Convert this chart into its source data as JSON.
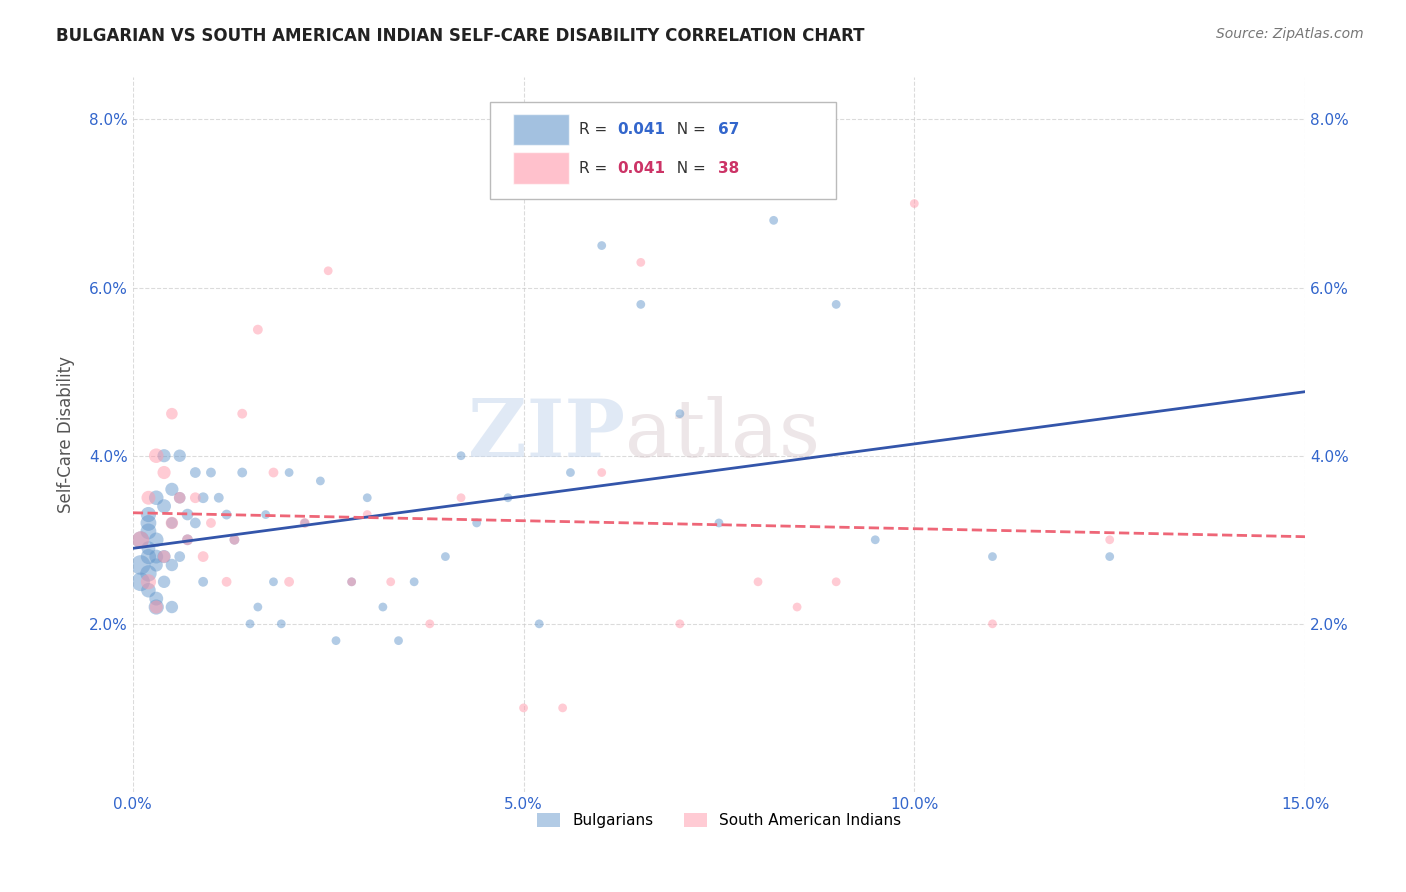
{
  "title": "BULGARIAN VS SOUTH AMERICAN INDIAN SELF-CARE DISABILITY CORRELATION CHART",
  "source": "Source: ZipAtlas.com",
  "ylabel": "Self-Care Disability",
  "xlabel": "",
  "xlim": [
    0.0,
    0.15
  ],
  "ylim": [
    0.0,
    0.085
  ],
  "xticks": [
    0.0,
    0.05,
    0.1,
    0.15
  ],
  "yticks": [
    0.02,
    0.04,
    0.06,
    0.08
  ],
  "watermark_zip": "ZIP",
  "watermark_atlas": "atlas",
  "bg_color": "#ffffff",
  "grid_color": "#cccccc",
  "blue_color": "#6699cc",
  "pink_color": "#ff99aa",
  "blue_line_color": "#3355aa",
  "pink_line_color": "#ee6677",
  "bulgarians_x": [
    0.001,
    0.001,
    0.001,
    0.002,
    0.002,
    0.002,
    0.002,
    0.002,
    0.002,
    0.002,
    0.003,
    0.003,
    0.003,
    0.003,
    0.003,
    0.003,
    0.004,
    0.004,
    0.004,
    0.004,
    0.005,
    0.005,
    0.005,
    0.005,
    0.006,
    0.006,
    0.006,
    0.007,
    0.007,
    0.008,
    0.008,
    0.009,
    0.009,
    0.01,
    0.011,
    0.012,
    0.013,
    0.014,
    0.015,
    0.016,
    0.017,
    0.018,
    0.019,
    0.02,
    0.022,
    0.024,
    0.026,
    0.028,
    0.03,
    0.032,
    0.034,
    0.036,
    0.04,
    0.042,
    0.044,
    0.048,
    0.052,
    0.056,
    0.06,
    0.065,
    0.07,
    0.075,
    0.082,
    0.09,
    0.095,
    0.11,
    0.125
  ],
  "bulgarians_y": [
    0.027,
    0.03,
    0.025,
    0.028,
    0.032,
    0.026,
    0.024,
    0.033,
    0.029,
    0.031,
    0.035,
    0.022,
    0.028,
    0.027,
    0.03,
    0.023,
    0.034,
    0.04,
    0.025,
    0.028,
    0.027,
    0.036,
    0.032,
    0.022,
    0.04,
    0.035,
    0.028,
    0.033,
    0.03,
    0.038,
    0.032,
    0.035,
    0.025,
    0.038,
    0.035,
    0.033,
    0.03,
    0.038,
    0.02,
    0.022,
    0.033,
    0.025,
    0.02,
    0.038,
    0.032,
    0.037,
    0.018,
    0.025,
    0.035,
    0.022,
    0.018,
    0.025,
    0.028,
    0.04,
    0.032,
    0.035,
    0.02,
    0.038,
    0.065,
    0.058,
    0.045,
    0.032,
    0.068,
    0.058,
    0.03,
    0.028,
    0.028
  ],
  "bulgarians_size": [
    200,
    150,
    180,
    120,
    130,
    140,
    110,
    120,
    100,
    130,
    110,
    120,
    100,
    90,
    110,
    100,
    100,
    90,
    80,
    90,
    80,
    90,
    70,
    80,
    80,
    70,
    60,
    70,
    60,
    60,
    60,
    60,
    50,
    50,
    50,
    50,
    50,
    50,
    40,
    40,
    40,
    40,
    40,
    40,
    40,
    40,
    40,
    40,
    40,
    40,
    40,
    40,
    40,
    40,
    40,
    40,
    40,
    40,
    40,
    40,
    40,
    40,
    40,
    40,
    40,
    40,
    40
  ],
  "sa_x": [
    0.001,
    0.002,
    0.002,
    0.003,
    0.003,
    0.004,
    0.004,
    0.005,
    0.005,
    0.006,
    0.007,
    0.008,
    0.009,
    0.01,
    0.012,
    0.013,
    0.014,
    0.016,
    0.018,
    0.02,
    0.022,
    0.025,
    0.028,
    0.03,
    0.033,
    0.038,
    0.042,
    0.05,
    0.055,
    0.06,
    0.065,
    0.07,
    0.08,
    0.085,
    0.09,
    0.1,
    0.11,
    0.125
  ],
  "sa_y": [
    0.03,
    0.025,
    0.035,
    0.04,
    0.022,
    0.038,
    0.028,
    0.032,
    0.045,
    0.035,
    0.03,
    0.035,
    0.028,
    0.032,
    0.025,
    0.03,
    0.045,
    0.055,
    0.038,
    0.025,
    0.032,
    0.062,
    0.025,
    0.033,
    0.025,
    0.02,
    0.035,
    0.01,
    0.01,
    0.038,
    0.063,
    0.02,
    0.025,
    0.022,
    0.025,
    0.07,
    0.02,
    0.03
  ],
  "sa_size": [
    150,
    120,
    100,
    110,
    90,
    90,
    80,
    80,
    70,
    70,
    60,
    60,
    60,
    50,
    50,
    50,
    50,
    50,
    50,
    50,
    50,
    40,
    40,
    40,
    40,
    40,
    40,
    40,
    40,
    40,
    40,
    40,
    40,
    40,
    40,
    40,
    40,
    40
  ],
  "legend_r_blue": "0.041",
  "legend_n_blue": "67",
  "legend_r_pink": "0.041",
  "legend_n_pink": "38",
  "legend_label_blue": "Bulgarians",
  "legend_label_pink": "South American Indians"
}
